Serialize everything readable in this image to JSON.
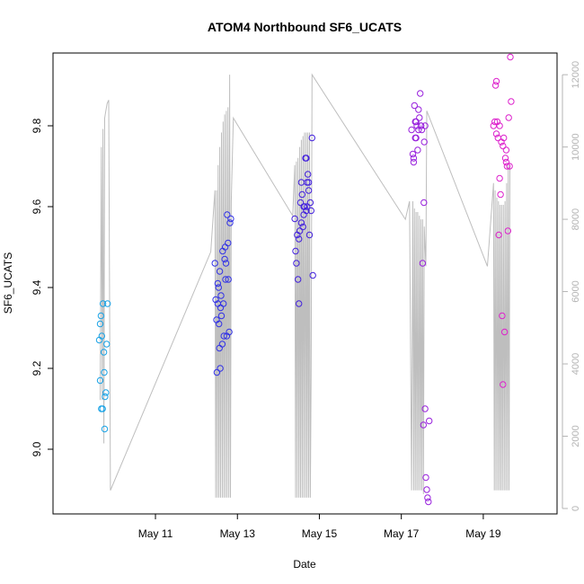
{
  "chart_data": {
    "type": "scatter",
    "title": "ATOM4 Northbound SF6_UCATS",
    "xlabel": "Date",
    "ylabel": "SF6_UCATS",
    "x_range_days": [
      8.5,
      20.8
    ],
    "ylim": [
      8.84,
      9.98
    ],
    "y2lim": [
      -150,
      12600
    ],
    "x_ticks": [
      {
        "value": 11,
        "label": "May 11"
      },
      {
        "value": 13,
        "label": "May 13"
      },
      {
        "value": 15,
        "label": "May 15"
      },
      {
        "value": 17,
        "label": "May 17"
      },
      {
        "value": 19,
        "label": "May 19"
      }
    ],
    "y_ticks": [
      {
        "value": 9.0,
        "label": "9.0"
      },
      {
        "value": 9.2,
        "label": "9.2"
      },
      {
        "value": 9.4,
        "label": "9.4"
      },
      {
        "value": 9.6,
        "label": "9.6"
      },
      {
        "value": 9.8,
        "label": "9.8"
      }
    ],
    "y2_ticks": [
      {
        "value": 0,
        "label": "0"
      },
      {
        "value": 2000,
        "label": "2000"
      },
      {
        "value": 4000,
        "label": "4000"
      },
      {
        "value": 6000,
        "label": "6000"
      },
      {
        "value": 8000,
        "label": "8000"
      },
      {
        "value": 10000,
        "label": "10000"
      },
      {
        "value": 12000,
        "label": "12000"
      }
    ],
    "colors": {
      "altitude_line": "#bebebe",
      "right_axis": "#b4b4b4",
      "flights": [
        "#1aa3e6",
        "#3333e6",
        "#4422dd",
        "#9922dd",
        "#dd22cc"
      ]
    },
    "grid": false,
    "scatter_groups": [
      {
        "points": [
          [
            9.63,
            9.27
          ],
          [
            9.65,
            9.31
          ],
          [
            9.67,
            9.33
          ],
          [
            9.69,
            9.28
          ],
          [
            9.72,
            9.36
          ],
          [
            9.74,
            9.24
          ],
          [
            9.75,
            9.19
          ],
          [
            9.77,
            9.13
          ],
          [
            9.79,
            9.14
          ],
          [
            9.81,
            9.26
          ],
          [
            9.83,
            9.36
          ],
          [
            9.65,
            9.17
          ],
          [
            9.68,
            9.1
          ],
          [
            9.71,
            9.1
          ],
          [
            9.76,
            9.05
          ]
        ]
      },
      {
        "points": [
          [
            12.45,
            9.46
          ],
          [
            12.47,
            9.37
          ],
          [
            12.49,
            9.32
          ],
          [
            12.5,
            9.19
          ],
          [
            12.52,
            9.36
          ],
          [
            12.54,
            9.4
          ],
          [
            12.55,
            9.31
          ],
          [
            12.57,
            9.44
          ],
          [
            12.58,
            9.2
          ],
          [
            12.6,
            9.38
          ],
          [
            12.61,
            9.33
          ],
          [
            12.63,
            9.26
          ],
          [
            12.64,
            9.49
          ],
          [
            12.66,
            9.36
          ],
          [
            12.67,
            9.28
          ],
          [
            12.69,
            9.47
          ],
          [
            12.7,
            9.5
          ],
          [
            12.71,
            9.42
          ],
          [
            12.72,
            9.46
          ],
          [
            12.74,
            9.28
          ],
          [
            12.75,
            9.58
          ],
          [
            12.77,
            9.51
          ],
          [
            12.78,
            9.42
          ],
          [
            12.8,
            9.29
          ],
          [
            12.82,
            9.56
          ],
          [
            12.84,
            9.57
          ],
          [
            12.52,
            9.41
          ],
          [
            12.56,
            9.25
          ],
          [
            12.59,
            9.35
          ]
        ]
      },
      {
        "points": [
          [
            14.4,
            9.57
          ],
          [
            14.42,
            9.49
          ],
          [
            14.44,
            9.46
          ],
          [
            14.46,
            9.53
          ],
          [
            14.48,
            9.42
          ],
          [
            14.5,
            9.36
          ],
          [
            14.52,
            9.54
          ],
          [
            14.54,
            9.61
          ],
          [
            14.56,
            9.66
          ],
          [
            14.58,
            9.63
          ],
          [
            14.6,
            9.55
          ],
          [
            14.62,
            9.58
          ],
          [
            14.64,
            9.6
          ],
          [
            14.66,
            9.72
          ],
          [
            14.68,
            9.72
          ],
          [
            14.7,
            9.66
          ],
          [
            14.72,
            9.68
          ],
          [
            14.74,
            9.64
          ],
          [
            14.76,
            9.53
          ],
          [
            14.78,
            9.61
          ],
          [
            14.8,
            9.59
          ],
          [
            14.82,
            9.77
          ],
          [
            14.84,
            9.43
          ],
          [
            14.5,
            9.52
          ],
          [
            14.56,
            9.56
          ],
          [
            14.62,
            9.6
          ],
          [
            14.68,
            9.59
          ],
          [
            14.74,
            9.66
          ],
          [
            14.7,
            9.6
          ]
        ]
      },
      {
        "points": [
          [
            17.25,
            9.79
          ],
          [
            17.28,
            9.73
          ],
          [
            17.3,
            9.72
          ],
          [
            17.32,
            9.85
          ],
          [
            17.34,
            9.77
          ],
          [
            17.36,
            9.81
          ],
          [
            17.38,
            9.8
          ],
          [
            17.4,
            9.74
          ],
          [
            17.42,
            9.84
          ],
          [
            17.44,
            9.82
          ],
          [
            17.46,
            9.88
          ],
          [
            17.48,
            9.8
          ],
          [
            17.5,
            9.79
          ],
          [
            17.52,
            9.46
          ],
          [
            17.54,
            9.06
          ],
          [
            17.56,
            9.76
          ],
          [
            17.58,
            9.1
          ],
          [
            17.6,
            8.93
          ],
          [
            17.62,
            8.9
          ],
          [
            17.64,
            8.88
          ],
          [
            17.66,
            8.87
          ],
          [
            17.68,
            9.07
          ],
          [
            17.55,
            9.61
          ],
          [
            17.3,
            9.71
          ],
          [
            17.36,
            9.77
          ],
          [
            17.42,
            9.79
          ],
          [
            17.48,
            9.8
          ],
          [
            17.34,
            9.81
          ],
          [
            17.58,
            9.8
          ]
        ]
      },
      {
        "points": [
          [
            19.25,
            9.8
          ],
          [
            19.28,
            9.81
          ],
          [
            19.3,
            9.9
          ],
          [
            19.32,
            9.91
          ],
          [
            19.34,
            9.81
          ],
          [
            19.36,
            9.77
          ],
          [
            19.38,
            9.53
          ],
          [
            19.4,
            9.67
          ],
          [
            19.42,
            9.63
          ],
          [
            19.44,
            9.76
          ],
          [
            19.46,
            9.33
          ],
          [
            19.48,
            9.16
          ],
          [
            19.5,
            9.77
          ],
          [
            19.52,
            9.29
          ],
          [
            19.54,
            9.72
          ],
          [
            19.56,
            9.74
          ],
          [
            19.58,
            9.7
          ],
          [
            19.6,
            9.54
          ],
          [
            19.62,
            9.82
          ],
          [
            19.64,
            9.7
          ],
          [
            19.66,
            9.97
          ],
          [
            19.68,
            9.86
          ],
          [
            19.32,
            9.78
          ],
          [
            19.4,
            9.8
          ],
          [
            19.48,
            9.75
          ],
          [
            19.56,
            9.71
          ]
        ]
      }
    ],
    "altitude_line": [
      [
        9.65,
        3000
      ],
      [
        9.68,
        10000
      ],
      [
        9.7,
        3000
      ],
      [
        9.72,
        10500
      ],
      [
        9.74,
        1800
      ],
      [
        9.76,
        10800
      ],
      [
        9.79,
        11000
      ],
      [
        9.82,
        11200
      ],
      [
        9.86,
        11300
      ],
      [
        9.9,
        500
      ],
      [
        12.35,
        7100
      ],
      [
        12.45,
        8800
      ],
      [
        12.47,
        300
      ],
      [
        12.49,
        8800
      ],
      [
        12.51,
        300
      ],
      [
        12.53,
        9500
      ],
      [
        12.55,
        300
      ],
      [
        12.57,
        10000
      ],
      [
        12.59,
        300
      ],
      [
        12.61,
        10400
      ],
      [
        12.63,
        300
      ],
      [
        12.65,
        10700
      ],
      [
        12.67,
        300
      ],
      [
        12.69,
        10900
      ],
      [
        12.71,
        300
      ],
      [
        12.73,
        11000
      ],
      [
        12.75,
        300
      ],
      [
        12.77,
        11100
      ],
      [
        12.79,
        300
      ],
      [
        12.81,
        12000
      ],
      [
        12.83,
        300
      ],
      [
        12.85,
        8500
      ],
      [
        12.9,
        10800
      ],
      [
        14.35,
        8100
      ],
      [
        14.4,
        9500
      ],
      [
        14.42,
        300
      ],
      [
        14.44,
        9600
      ],
      [
        14.46,
        300
      ],
      [
        14.48,
        9700
      ],
      [
        14.5,
        300
      ],
      [
        14.52,
        10000
      ],
      [
        14.54,
        300
      ],
      [
        14.56,
        10200
      ],
      [
        14.58,
        300
      ],
      [
        14.6,
        10300
      ],
      [
        14.62,
        300
      ],
      [
        14.64,
        10400
      ],
      [
        14.66,
        300
      ],
      [
        14.68,
        10400
      ],
      [
        14.7,
        300
      ],
      [
        14.72,
        10400
      ],
      [
        14.74,
        300
      ],
      [
        14.76,
        10400
      ],
      [
        14.78,
        300
      ],
      [
        14.8,
        3700
      ],
      [
        14.82,
        12000
      ],
      [
        17.1,
        8000
      ],
      [
        17.2,
        8500
      ],
      [
        17.25,
        500
      ],
      [
        17.28,
        8500
      ],
      [
        17.3,
        500
      ],
      [
        17.32,
        8300
      ],
      [
        17.34,
        500
      ],
      [
        17.36,
        8200
      ],
      [
        17.38,
        500
      ],
      [
        17.4,
        8200
      ],
      [
        17.42,
        500
      ],
      [
        17.44,
        8100
      ],
      [
        17.46,
        500
      ],
      [
        17.48,
        8000
      ],
      [
        17.5,
        500
      ],
      [
        17.52,
        8000
      ],
      [
        17.54,
        400
      ],
      [
        17.56,
        7800
      ],
      [
        17.6,
        6700
      ],
      [
        17.62,
        11000
      ],
      [
        19.1,
        6700
      ],
      [
        19.25,
        9000
      ],
      [
        19.27,
        500
      ],
      [
        19.29,
        8800
      ],
      [
        19.31,
        500
      ],
      [
        19.33,
        8600
      ],
      [
        19.35,
        500
      ],
      [
        19.37,
        8500
      ],
      [
        19.39,
        500
      ],
      [
        19.41,
        8400
      ],
      [
        19.43,
        500
      ],
      [
        19.45,
        8400
      ],
      [
        19.47,
        500
      ],
      [
        19.49,
        8400
      ],
      [
        19.51,
        500
      ],
      [
        19.53,
        8500
      ],
      [
        19.55,
        500
      ],
      [
        19.57,
        9000
      ],
      [
        19.59,
        500
      ],
      [
        19.61,
        9500
      ],
      [
        19.63,
        500
      ],
      [
        19.65,
        9500
      ]
    ]
  }
}
